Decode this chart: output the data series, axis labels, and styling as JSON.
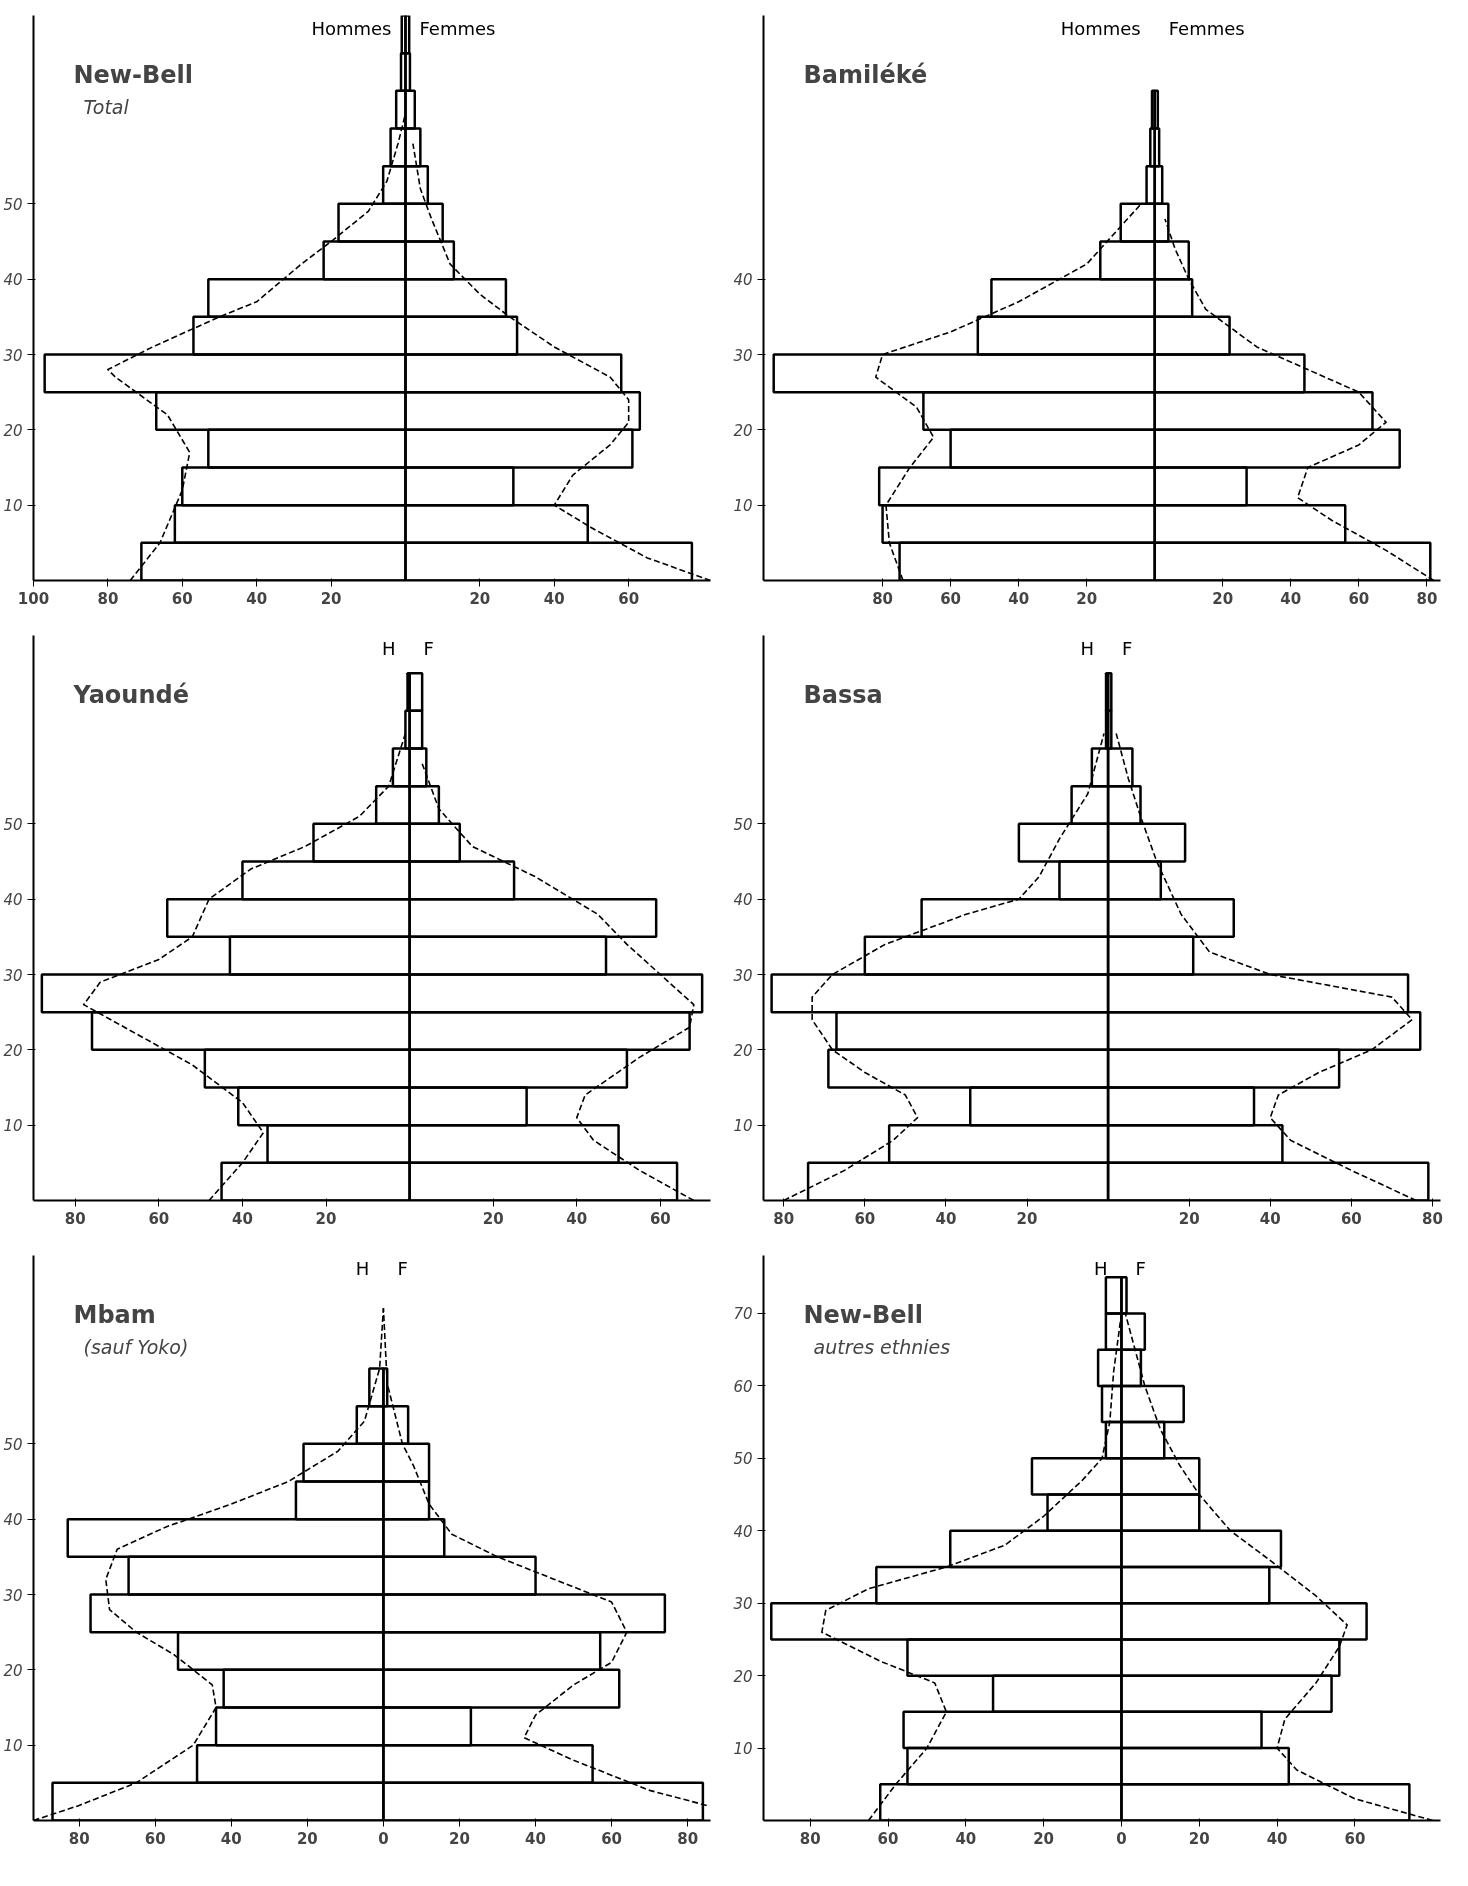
{
  "chart_data": [
    {
      "type": "bar",
      "orientation": "horizontal",
      "title": "New-Bell",
      "subtitle": "Total",
      "xlim": [
        -100,
        82
      ],
      "ylim": [
        0,
        75
      ],
      "xticks": [
        {
          "value": -100,
          "label": "100"
        },
        {
          "value": -80,
          "label": "80"
        },
        {
          "value": -60,
          "label": "60"
        },
        {
          "value": -40,
          "label": "40"
        },
        {
          "value": -20,
          "label": "20"
        },
        {
          "value": 20,
          "label": "20"
        },
        {
          "value": 40,
          "label": "40"
        },
        {
          "value": 60,
          "label": "60"
        }
      ],
      "yticks": [
        10,
        20,
        30,
        40,
        50
      ],
      "series": [
        {
          "name": "Hommes",
          "color": "#000000",
          "x": [
            2.5,
            7.5,
            12.5,
            17.5,
            22.5,
            27.5,
            32.5,
            37.5,
            42.5,
            47.5,
            52.5,
            57.5,
            62.5,
            67.5,
            72.5
          ],
          "values": [
            -71,
            -62,
            -60,
            -53,
            -67,
            -97,
            -57,
            -53,
            -22,
            -18,
            -6,
            -4,
            -2.5,
            -1.2,
            -1
          ]
        },
        {
          "name": "Femmes",
          "color": "#000000",
          "x": [
            2.5,
            7.5,
            12.5,
            17.5,
            22.5,
            27.5,
            32.5,
            37.5,
            42.5,
            47.5,
            52.5,
            57.5,
            62.5,
            67.5,
            72.5
          ],
          "values": [
            77,
            49,
            29,
            61,
            63,
            58,
            30,
            27,
            13,
            10,
            6,
            4,
            2.5,
            1.2,
            1
          ]
        },
        {
          "type": "line",
          "line_style": "dashed",
          "color": "#000000",
          "x": [
            0,
            5,
            12,
            17,
            22,
            27,
            28,
            31,
            35,
            37,
            42,
            45,
            49,
            53,
            58,
            62
          ],
          "values": [
            -74,
            -66,
            -60,
            -58,
            -64,
            -78,
            -80,
            -68,
            -50,
            -40,
            -28,
            -20,
            -10,
            -5,
            -2,
            0
          ]
        },
        {
          "type": "line",
          "line_style": "dashed",
          "color": "#000000",
          "x": [
            0,
            3,
            7,
            10,
            14,
            18,
            21,
            24,
            27,
            31,
            35,
            38,
            42,
            48,
            52,
            58
          ],
          "values": [
            82,
            65,
            50,
            40,
            45,
            55,
            60,
            60,
            55,
            40,
            28,
            20,
            12,
            7,
            4,
            2
          ]
        }
      ]
    },
    {
      "type": "bar",
      "orientation": "horizontal",
      "title": "Bamiléké",
      "xlim": [
        -115,
        84
      ],
      "ylim": [
        0,
        75
      ],
      "xticks": [
        {
          "value": -80,
          "label": "80"
        },
        {
          "value": -60,
          "label": "60"
        },
        {
          "value": -40,
          "label": "40"
        },
        {
          "value": -20,
          "label": "20"
        },
        {
          "value": 20,
          "label": "20"
        },
        {
          "value": 40,
          "label": "40"
        },
        {
          "value": 60,
          "label": "60"
        },
        {
          "value": 80,
          "label": "80"
        }
      ],
      "yticks": [
        10,
        20,
        30,
        40
      ],
      "series": [
        {
          "name": "Hommes",
          "color": "#000000",
          "x": [
            2.5,
            7.5,
            12.5,
            17.5,
            22.5,
            27.5,
            32.5,
            37.5,
            42.5,
            47.5,
            52.5,
            57.5,
            62.5
          ],
          "values": [
            -75,
            -80,
            -81,
            -60,
            -68,
            -112,
            -52,
            -48,
            -16,
            -10,
            -2.4,
            -1.3,
            -0.8
          ]
        },
        {
          "name": "Femmes",
          "color": "#000000",
          "x": [
            2.5,
            7.5,
            12.5,
            17.5,
            22.5,
            27.5,
            32.5,
            37.5,
            42.5,
            47.5,
            52.5,
            57.5,
            62.5
          ],
          "values": [
            81,
            56,
            27,
            72,
            64,
            44,
            22,
            11,
            10,
            4,
            2.2,
            1.3,
            0.9
          ]
        },
        {
          "type": "line",
          "line_style": "dashed",
          "color": "#000000",
          "x": [
            0,
            5,
            10,
            15,
            19,
            23,
            27,
            30,
            33,
            37,
            42,
            47,
            50
          ],
          "values": [
            -74,
            -78,
            -79,
            -72,
            -65,
            -70,
            -82,
            -80,
            -60,
            -40,
            -20,
            -10,
            -4
          ]
        },
        {
          "type": "line",
          "line_style": "dashed",
          "color": "#000000",
          "x": [
            0,
            4,
            8,
            11,
            15,
            18,
            21,
            25,
            28,
            31,
            36,
            40,
            44,
            48
          ],
          "values": [
            82,
            68,
            52,
            42,
            45,
            60,
            68,
            60,
            45,
            30,
            15,
            10,
            6,
            3
          ]
        }
      ]
    },
    {
      "type": "bar",
      "orientation": "horizontal",
      "title": "Yaoundé",
      "xlim": [
        -90,
        72
      ],
      "ylim": [
        0,
        75
      ],
      "xticks": [
        {
          "value": -80,
          "label": "80"
        },
        {
          "value": -60,
          "label": "60"
        },
        {
          "value": -40,
          "label": "40"
        },
        {
          "value": -20,
          "label": "20"
        },
        {
          "value": 20,
          "label": "20"
        },
        {
          "value": 40,
          "label": "40"
        },
        {
          "value": 60,
          "label": "60"
        }
      ],
      "yticks": [
        10,
        20,
        30,
        40,
        50
      ],
      "series": [
        {
          "name": "H",
          "color": "#000000",
          "x": [
            2.5,
            7.5,
            12.5,
            17.5,
            22.5,
            27.5,
            32.5,
            37.5,
            42.5,
            47.5,
            52.5,
            57.5,
            62.5,
            67.5
          ],
          "values": [
            -45,
            -34,
            -41,
            -49,
            -76,
            -88,
            -43,
            -58,
            -40,
            -23,
            -8,
            -4,
            -1,
            -0.5
          ]
        },
        {
          "name": "F",
          "color": "#000000",
          "x": [
            2.5,
            7.5,
            12.5,
            17.5,
            22.5,
            27.5,
            32.5,
            37.5,
            42.5,
            47.5,
            52.5,
            57.5,
            62.5,
            67.5
          ],
          "values": [
            64,
            50,
            28,
            52,
            67,
            70,
            47,
            59,
            25,
            12,
            7,
            4,
            3,
            3
          ]
        },
        {
          "type": "line",
          "line_style": "dashed",
          "color": "#000000",
          "x": [
            0,
            5,
            9,
            13,
            18,
            22,
            26,
            29,
            32,
            35,
            40,
            44,
            47,
            51,
            55,
            62
          ],
          "values": [
            -48,
            -40,
            -35,
            -40,
            -52,
            -65,
            -78,
            -74,
            -60,
            -52,
            -48,
            -38,
            -25,
            -12,
            -5,
            -1
          ]
        },
        {
          "type": "line",
          "line_style": "dashed",
          "color": "#000000",
          "x": [
            0,
            4,
            8,
            11,
            14,
            19,
            23,
            26,
            30,
            34,
            38,
            43,
            47,
            52,
            58
          ],
          "values": [
            68,
            55,
            44,
            40,
            42,
            55,
            67,
            68,
            60,
            52,
            45,
            30,
            15,
            7,
            3
          ]
        }
      ]
    },
    {
      "type": "bar",
      "orientation": "horizontal",
      "title": "Bassa",
      "xlim": [
        -85,
        82
      ],
      "ylim": [
        0,
        75
      ],
      "xticks": [
        {
          "value": -80,
          "label": "80"
        },
        {
          "value": -60,
          "label": "60"
        },
        {
          "value": -40,
          "label": "40"
        },
        {
          "value": -20,
          "label": "20"
        },
        {
          "value": 20,
          "label": "20"
        },
        {
          "value": 40,
          "label": "40"
        },
        {
          "value": 60,
          "label": "60"
        },
        {
          "value": 80,
          "label": "80"
        }
      ],
      "yticks": [
        10,
        20,
        30,
        40,
        50
      ],
      "series": [
        {
          "name": "H",
          "color": "#000000",
          "x": [
            2.5,
            7.5,
            12.5,
            17.5,
            22.5,
            27.5,
            32.5,
            37.5,
            42.5,
            47.5,
            52.5,
            57.5,
            62.5,
            67.5
          ],
          "values": [
            -74,
            -54,
            -34,
            -69,
            -67,
            -83,
            -60,
            -46,
            -12,
            -22,
            -9,
            -4,
            -0.5,
            -0.5
          ]
        },
        {
          "name": "F",
          "color": "#000000",
          "x": [
            2.5,
            7.5,
            12.5,
            17.5,
            22.5,
            27.5,
            32.5,
            37.5,
            42.5,
            47.5,
            52.5,
            57.5,
            62.5,
            67.5
          ],
          "values": [
            79,
            43,
            36,
            57,
            77,
            74,
            21,
            31,
            13,
            19,
            8,
            6,
            0.8,
            0.8
          ]
        },
        {
          "type": "line",
          "line_style": "dashed",
          "color": "#000000",
          "x": [
            0,
            4,
            8,
            11,
            14,
            17,
            20,
            24,
            27,
            30,
            34,
            38,
            40,
            43,
            48,
            54,
            62
          ],
          "values": [
            -80,
            -65,
            -53,
            -47,
            -50,
            -60,
            -68,
            -73,
            -73,
            -68,
            -55,
            -35,
            -22,
            -17,
            -12,
            -5,
            -1
          ]
        },
        {
          "type": "line",
          "line_style": "dashed",
          "color": "#000000",
          "x": [
            0,
            4,
            8,
            11,
            14,
            17,
            20,
            24,
            27,
            30,
            33,
            38,
            45,
            51,
            56,
            62
          ],
          "values": [
            76,
            60,
            45,
            40,
            42,
            52,
            65,
            75,
            70,
            40,
            25,
            18,
            12,
            8,
            5,
            2
          ]
        }
      ]
    },
    {
      "type": "bar",
      "orientation": "horizontal",
      "title": "Mbam",
      "subtitle": "(sauf Yoko)",
      "xlim": [
        -92,
        86
      ],
      "ylim": [
        0,
        75
      ],
      "xticks": [
        {
          "value": -80,
          "label": "80"
        },
        {
          "value": -60,
          "label": "60"
        },
        {
          "value": -40,
          "label": "40"
        },
        {
          "value": -20,
          "label": "20"
        },
        0,
        {
          "value": 20,
          "label": "20"
        },
        {
          "value": 40,
          "label": "40"
        },
        {
          "value": 60,
          "label": "60"
        },
        {
          "value": 80,
          "label": "80"
        }
      ],
      "yticks": [
        10,
        20,
        30,
        40,
        50
      ],
      "series": [
        {
          "name": "H",
          "color": "#000000",
          "x": [
            2.5,
            7.5,
            12.5,
            17.5,
            22.5,
            27.5,
            32.5,
            37.5,
            42.5,
            47.5,
            52.5,
            57.5
          ],
          "values": [
            -87,
            -49,
            -44,
            -42,
            -54,
            -77,
            -67,
            -83,
            -23,
            -21,
            -7,
            -3.7
          ]
        },
        {
          "name": "F",
          "color": "#000000",
          "x": [
            2.5,
            7.5,
            12.5,
            17.5,
            22.5,
            27.5,
            32.5,
            37.5,
            42.5,
            47.5,
            52.5,
            57.5
          ],
          "values": [
            84,
            55,
            23,
            62,
            57,
            74,
            40,
            16,
            12,
            12,
            6.5,
            1
          ]
        },
        {
          "type": "line",
          "line_style": "dashed",
          "color": "#000000",
          "x": [
            0,
            2,
            5,
            10,
            15,
            18,
            22,
            25,
            28,
            32,
            36,
            39,
            42,
            45,
            49,
            53,
            60,
            68
          ],
          "values": [
            -92,
            -80,
            -65,
            -50,
            -44,
            -45,
            -55,
            -65,
            -72,
            -73,
            -70,
            -57,
            -40,
            -25,
            -12,
            -5,
            -1,
            0
          ]
        },
        {
          "type": "line",
          "line_style": "dashed",
          "color": "#000000",
          "x": [
            2,
            4,
            8,
            11,
            14,
            18,
            21,
            25,
            29,
            32,
            35,
            38,
            42,
            47,
            50,
            58,
            68
          ],
          "values": [
            85,
            70,
            50,
            37,
            40,
            50,
            60,
            64,
            60,
            45,
            30,
            18,
            12,
            8,
            5,
            1,
            0
          ]
        }
      ]
    },
    {
      "type": "bar",
      "orientation": "horizontal",
      "title": "New-Bell",
      "subtitle": "autres ethnies",
      "xlim": [
        -92,
        82
      ],
      "ylim": [
        0,
        78
      ],
      "xticks": [
        {
          "value": -80,
          "label": "80"
        },
        {
          "value": -60,
          "label": "60"
        },
        {
          "value": -40,
          "label": "40"
        },
        {
          "value": -20,
          "label": "20"
        },
        0,
        {
          "value": 20,
          "label": "20"
        },
        {
          "value": 40,
          "label": "40"
        },
        {
          "value": 60,
          "label": "60"
        }
      ],
      "yticks": [
        10,
        20,
        30,
        40,
        50,
        60,
        70
      ],
      "series": [
        {
          "name": "H",
          "color": "#000000",
          "x": [
            2.5,
            7.5,
            12.5,
            17.5,
            22.5,
            27.5,
            32.5,
            37.5,
            42.5,
            47.5,
            52.5,
            57.5,
            62.5,
            67.5,
            72.5
          ],
          "values": [
            -62,
            -55,
            -56,
            -33,
            -55,
            -90,
            -63,
            -44,
            -19,
            -23,
            -4,
            -5,
            -6,
            -4,
            -4
          ]
        },
        {
          "name": "F",
          "color": "#000000",
          "x": [
            2.5,
            7.5,
            12.5,
            17.5,
            22.5,
            27.5,
            32.5,
            37.5,
            42.5,
            47.5,
            52.5,
            57.5,
            62.5,
            67.5,
            72.5
          ],
          "values": [
            74,
            43,
            36,
            54,
            56,
            63,
            38,
            41,
            20,
            20,
            11,
            16,
            5,
            6,
            1.3
          ]
        },
        {
          "type": "line",
          "line_style": "dashed",
          "color": "#000000",
          "x": [
            0,
            5,
            10,
            15,
            19,
            22,
            26,
            29,
            32,
            35,
            38,
            42,
            47,
            50,
            55,
            62,
            70
          ],
          "values": [
            -65,
            -58,
            -50,
            -45,
            -48,
            -62,
            -77,
            -76,
            -65,
            -45,
            -30,
            -20,
            -10,
            -5,
            -3,
            -2,
            0
          ]
        },
        {
          "type": "line",
          "line_style": "dashed",
          "color": "#000000",
          "x": [
            0,
            3,
            7,
            10,
            14,
            19,
            24,
            27,
            31,
            36,
            40,
            45,
            49,
            54,
            60,
            66,
            70
          ],
          "values": [
            80,
            60,
            45,
            40,
            42,
            50,
            56,
            58,
            50,
            38,
            28,
            20,
            15,
            10,
            6,
            3,
            1
          ]
        }
      ]
    }
  ]
}
